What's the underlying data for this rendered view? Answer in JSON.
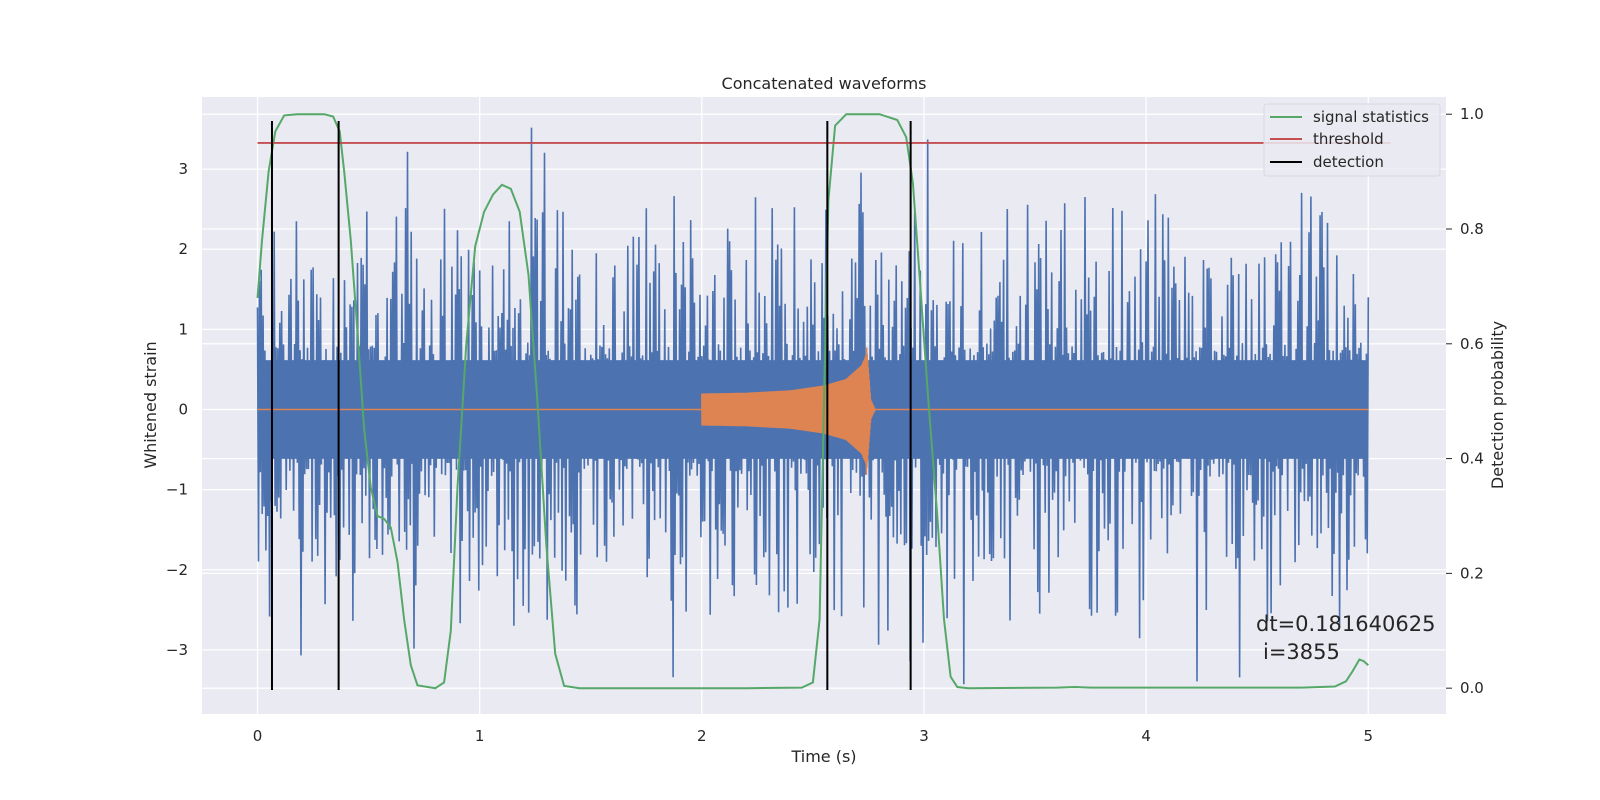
{
  "chart_data": {
    "type": "line",
    "title": "Concatenated waveforms",
    "xlabel": "Time (s)",
    "ylabel": "Whitened strain",
    "y2label": "Detection probability",
    "xlim": [
      -0.25,
      5.35
    ],
    "ylim": [
      -3.8,
      3.9
    ],
    "y2lim": [
      -0.045,
      1.03
    ],
    "x_ticks": [
      0,
      1,
      2,
      3,
      4,
      5
    ],
    "y_ticks": [
      -3,
      -2,
      -1,
      0,
      1,
      2,
      3
    ],
    "y2_ticks": [
      0.0,
      0.2,
      0.4,
      0.6,
      0.8,
      1.0
    ],
    "grid": true,
    "legend_position": "top-right",
    "series": [
      {
        "name": "",
        "axis": "left",
        "color": "#4c72b0",
        "kind": "noise",
        "x_range": [
          0,
          5
        ],
        "core_amplitude": 0.7,
        "spike_max": 3.55
      },
      {
        "name": "",
        "axis": "left",
        "color": "#dd8452",
        "kind": "chirp",
        "x_range": [
          2.0,
          2.78
        ],
        "peak_time": 2.74,
        "envelope_points": [
          [
            2.0,
            0.2
          ],
          [
            2.2,
            0.21
          ],
          [
            2.4,
            0.24
          ],
          [
            2.55,
            0.3
          ],
          [
            2.65,
            0.38
          ],
          [
            2.72,
            0.55
          ],
          [
            2.74,
            0.68
          ],
          [
            2.76,
            0.1
          ],
          [
            2.78,
            0.0
          ]
        ]
      },
      {
        "name": "signal statistics",
        "axis": "right",
        "color": "#55a868",
        "kind": "line",
        "points": [
          [
            0.0,
            0.68
          ],
          [
            0.02,
            0.78
          ],
          [
            0.05,
            0.9
          ],
          [
            0.08,
            0.97
          ],
          [
            0.12,
            0.998
          ],
          [
            0.18,
            1.0
          ],
          [
            0.3,
            1.0
          ],
          [
            0.34,
            0.996
          ],
          [
            0.37,
            0.97
          ],
          [
            0.39,
            0.9
          ],
          [
            0.42,
            0.78
          ],
          [
            0.45,
            0.62
          ],
          [
            0.48,
            0.45
          ],
          [
            0.51,
            0.35
          ],
          [
            0.54,
            0.3
          ],
          [
            0.57,
            0.295
          ],
          [
            0.6,
            0.28
          ],
          [
            0.63,
            0.22
          ],
          [
            0.66,
            0.12
          ],
          [
            0.69,
            0.04
          ],
          [
            0.72,
            0.005
          ],
          [
            0.8,
            0.0
          ],
          [
            0.84,
            0.01
          ],
          [
            0.87,
            0.1
          ],
          [
            0.9,
            0.35
          ],
          [
            0.94,
            0.6
          ],
          [
            0.98,
            0.77
          ],
          [
            1.02,
            0.83
          ],
          [
            1.06,
            0.86
          ],
          [
            1.1,
            0.877
          ],
          [
            1.14,
            0.87
          ],
          [
            1.18,
            0.83
          ],
          [
            1.22,
            0.72
          ],
          [
            1.26,
            0.5
          ],
          [
            1.3,
            0.25
          ],
          [
            1.34,
            0.06
          ],
          [
            1.38,
            0.004
          ],
          [
            1.45,
            0.0
          ],
          [
            2.2,
            0.0
          ],
          [
            2.45,
            0.001
          ],
          [
            2.5,
            0.01
          ],
          [
            2.53,
            0.12
          ],
          [
            2.55,
            0.5
          ],
          [
            2.57,
            0.85
          ],
          [
            2.6,
            0.98
          ],
          [
            2.65,
            1.0
          ],
          [
            2.8,
            1.0
          ],
          [
            2.88,
            0.99
          ],
          [
            2.92,
            0.96
          ],
          [
            2.95,
            0.88
          ],
          [
            2.98,
            0.72
          ],
          [
            3.02,
            0.5
          ],
          [
            3.06,
            0.3
          ],
          [
            3.09,
            0.12
          ],
          [
            3.12,
            0.02
          ],
          [
            3.15,
            0.002
          ],
          [
            3.2,
            0.0
          ],
          [
            3.6,
            0.001
          ],
          [
            3.68,
            0.002
          ],
          [
            3.75,
            0.001
          ],
          [
            4.7,
            0.001
          ],
          [
            4.85,
            0.003
          ],
          [
            4.9,
            0.012
          ],
          [
            4.93,
            0.03
          ],
          [
            4.96,
            0.05
          ],
          [
            4.98,
            0.047
          ],
          [
            5.0,
            0.04
          ]
        ]
      },
      {
        "name": "threshold",
        "axis": "right",
        "color": "#c44e52",
        "kind": "hline",
        "value": 0.95,
        "x_range": [
          0,
          5.1
        ]
      },
      {
        "name": "detection",
        "axis": "left",
        "color": "#000000",
        "kind": "vlines",
        "x": [
          0.065,
          0.365,
          2.565,
          2.94
        ],
        "y_range": [
          -3.5,
          3.6
        ]
      }
    ],
    "annotations": [
      "dt=0.181640625",
      "i=3855"
    ]
  }
}
